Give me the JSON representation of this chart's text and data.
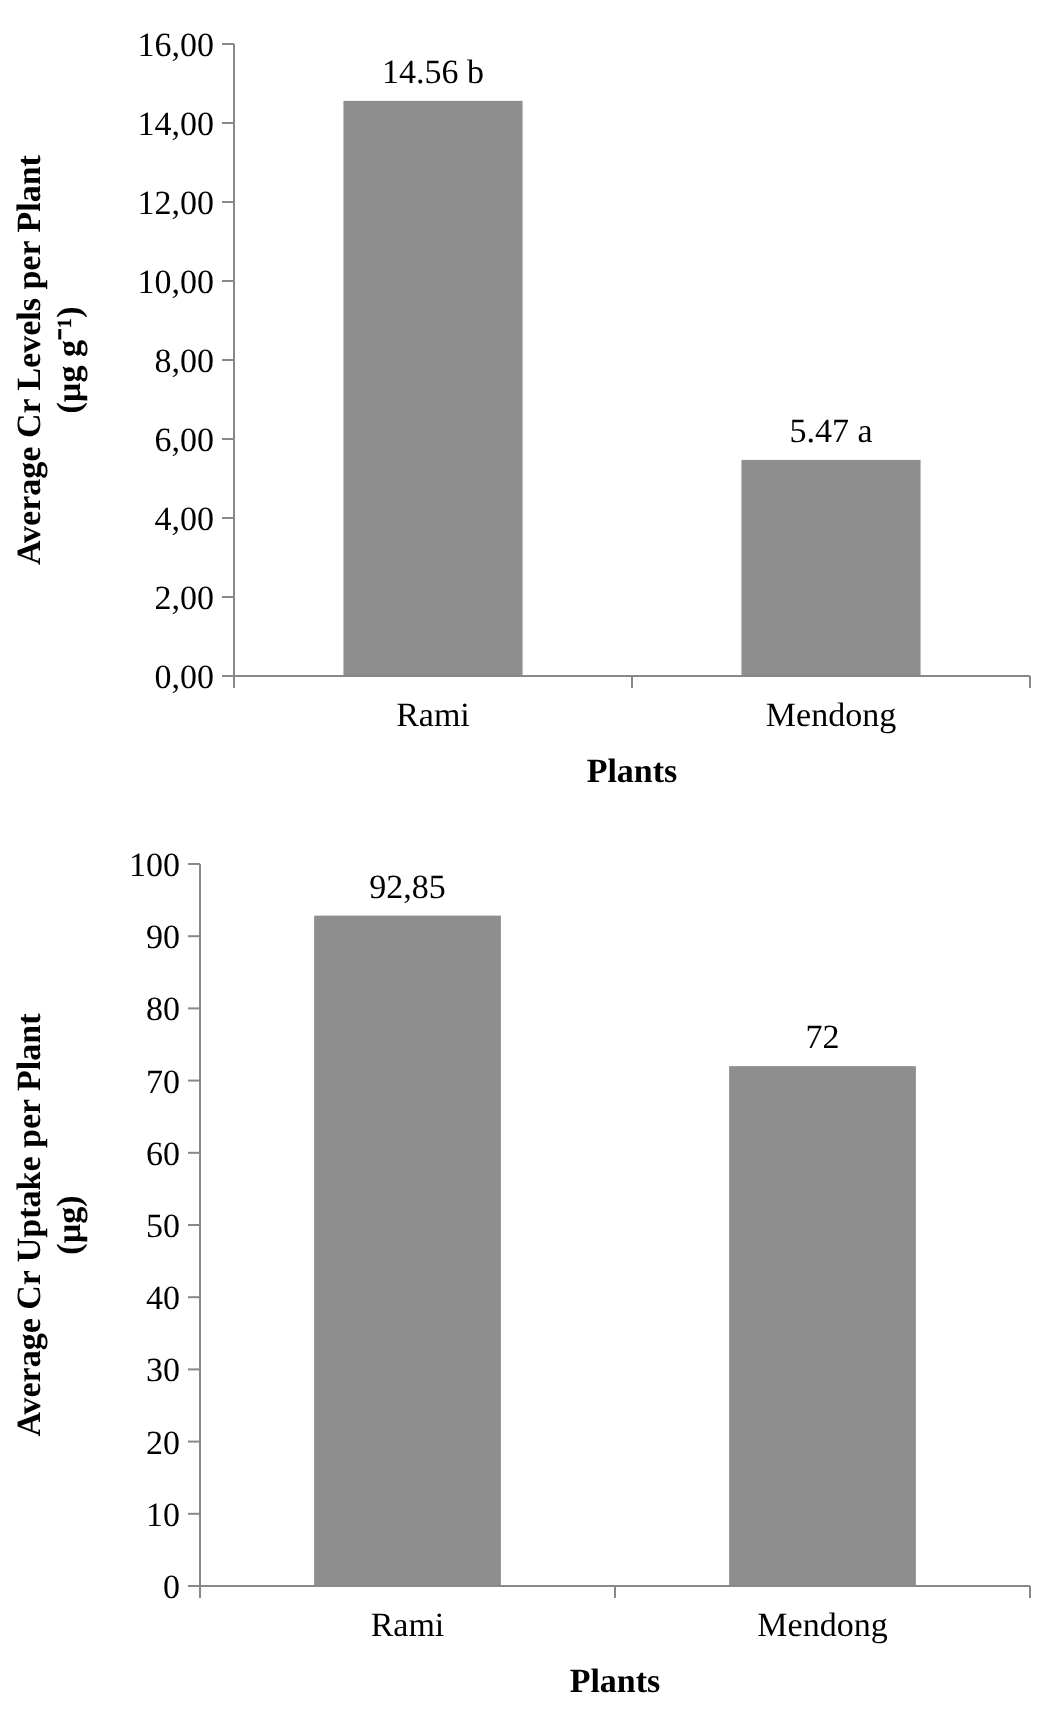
{
  "chart_data": [
    {
      "type": "bar",
      "xlabel": "Plants",
      "ylabel": "Average Cr Levels per Plant (µg g⁻¹)",
      "categories": [
        "Rami",
        "Mendong"
      ],
      "values": [
        14.56,
        5.47
      ],
      "value_labels": [
        "14.56 b",
        "5.47 a"
      ],
      "color": "#8f8e8e",
      "ylim": [
        0,
        16
      ],
      "yticks": [
        {
          "value": 0,
          "label": "0,00"
        },
        {
          "value": 2,
          "label": "2,00"
        },
        {
          "value": 4,
          "label": "4,00"
        },
        {
          "value": 6,
          "label": "6,00"
        },
        {
          "value": 8,
          "label": "8,00"
        },
        {
          "value": 10,
          "label": "10,00"
        },
        {
          "value": 12,
          "label": "12,00"
        },
        {
          "value": 14,
          "label": "14,00"
        },
        {
          "value": 16,
          "label": "16,00"
        }
      ]
    },
    {
      "type": "bar",
      "xlabel": "Plants",
      "ylabel": "Average Cr Uptake per Plant (µg)",
      "categories": [
        "Rami",
        "Mendong"
      ],
      "values": [
        92.85,
        72
      ],
      "value_labels": [
        "92,85",
        "72"
      ],
      "color": "#8f8e8e",
      "ylim": [
        0,
        100
      ],
      "yticks": [
        0,
        10,
        20,
        30,
        40,
        50,
        60,
        70,
        80,
        90,
        100
      ]
    }
  ]
}
